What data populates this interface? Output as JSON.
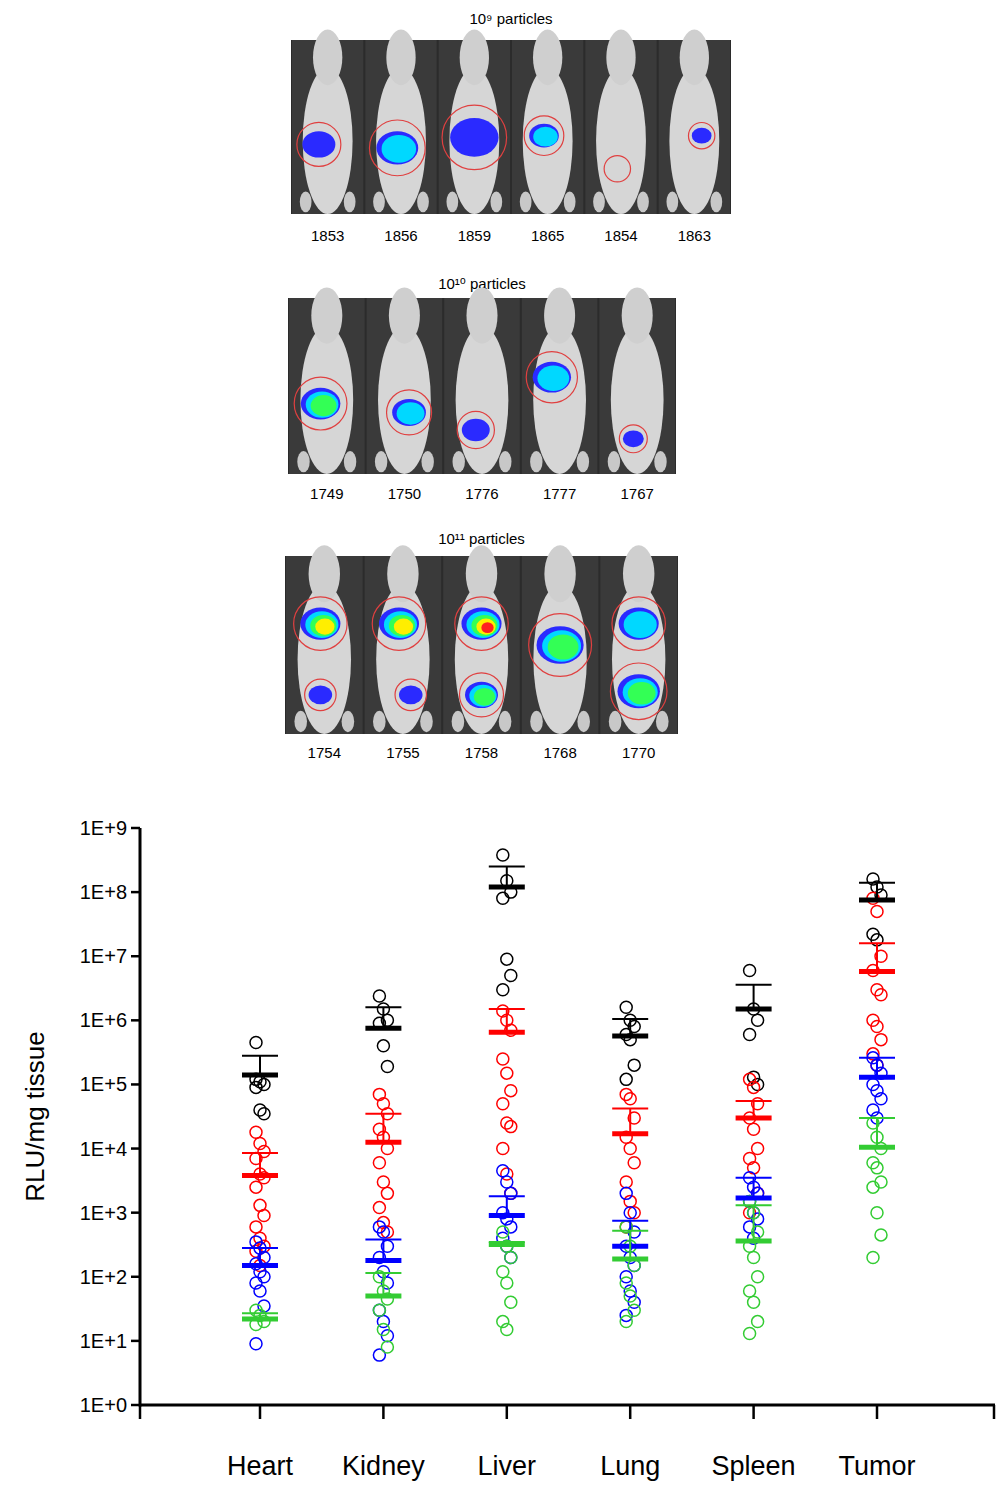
{
  "image_panels": [
    {
      "title": "10⁹ particles",
      "labels": [
        "1853",
        "1856",
        "1859",
        "1865",
        "1854",
        "1863"
      ]
    },
    {
      "title": "10¹⁰ particles",
      "labels": [
        "1749",
        "1750",
        "1776",
        "1777",
        "1767"
      ]
    },
    {
      "title": "10¹¹ particles",
      "labels": [
        "1754",
        "1755",
        "1758",
        "1768",
        "1770"
      ]
    }
  ],
  "chart_data": {
    "type": "dot",
    "y_label": "RLU/mg tissue",
    "categories": [
      "Heart",
      "Kidney",
      "Liver",
      "Lung",
      "Spleen",
      "Tumor"
    ],
    "log": "y",
    "grid": false,
    "marker": "open_circle",
    "ylim": [
      1,
      1000000000.0
    ],
    "yticks": [
      {
        "value": 1,
        "label": "1E+0"
      },
      {
        "value": 10,
        "label": "1E+1"
      },
      {
        "value": 100,
        "label": "1E+2"
      },
      {
        "value": 1000,
        "label": "1E+3"
      },
      {
        "value": 10000,
        "label": "1E+4"
      },
      {
        "value": 100000,
        "label": "1E+5"
      },
      {
        "value": 1000000,
        "label": "1E+6"
      },
      {
        "value": 10000000,
        "label": "1E+7"
      },
      {
        "value": 100000000,
        "label": "1E+8"
      },
      {
        "value": 1000000000,
        "label": "1E+9"
      }
    ],
    "series": [
      {
        "color": "#000000",
        "values": [
          [
            450000.0,
            110000.0,
            100000.0,
            90000.0,
            40000.0,
            35000.0,
            120000.0
          ],
          [
            2400000.0,
            1500000.0,
            1000000.0,
            900000.0,
            400000.0,
            190000.0
          ],
          [
            380000000.0,
            150000000.0,
            100000000.0,
            80000000.0,
            9000000.0,
            5000000.0,
            3000000.0
          ],
          [
            1600000.0,
            1000000.0,
            800000.0,
            600000.0,
            500000.0,
            200000.0,
            120000.0
          ],
          [
            6000000.0,
            1500000.0,
            1000000.0,
            600000.0,
            130000.0,
            100000.0
          ],
          [
            160000000.0,
            120000000.0,
            90000000.0,
            22000000.0,
            18000000.0
          ]
        ],
        "mean": [
          140000.0,
          750000.0,
          120000000.0,
          570000.0,
          1500000.0,
          75000000.0
        ],
        "errors": [
          140000.0,
          850000.0,
          130000000.0,
          480000.0,
          2100000.0,
          65000000.0
        ]
      },
      {
        "color": "#ff0000",
        "values": [
          [
            18000.0,
            12000.0,
            9000.0,
            7000.0,
            4000.0,
            3500.0,
            2500.0,
            1300.0,
            900,
            600,
            400,
            300,
            250,
            150
          ],
          [
            70000.0,
            50000.0,
            35000.0,
            20000.0,
            15000.0,
            10000.0,
            6000.0,
            3000.0,
            2000.0,
            1200.0,
            700,
            500
          ],
          [
            1400000.0,
            1000000.0,
            700000.0,
            250000.0,
            150000.0,
            80000.0,
            50000.0,
            25000.0,
            22000.0,
            10000.0,
            4000.0,
            2000.0
          ],
          [
            70000.0,
            60000.0,
            30000.0,
            15000.0,
            10000.0,
            6000.0,
            3000.0,
            1500.0,
            1000.0,
            600
          ],
          [
            120000.0,
            90000.0,
            50000.0,
            30000.0,
            20000.0,
            10000.0,
            7000.0,
            5000.0,
            2000.0,
            1000.0
          ],
          [
            80000000.0,
            50000000.0,
            10000000.0,
            6000000.0,
            3000000.0,
            2500000.0,
            1000000.0,
            800000.0,
            500000.0,
            300000.0,
            200000.0
          ]
        ],
        "mean": [
          3800.0,
          12500.0,
          650000.0,
          17000.0,
          30000.0,
          5800000.0
        ],
        "errors": [
          4700.0,
          22500.0,
          850000.0,
          25000.0,
          25000.0,
          10200000.0
        ]
      },
      {
        "color": "#0000ff",
        "values": [
          [
            350,
            280,
            200,
            160,
            120,
            100,
            80,
            60,
            35,
            9
          ],
          [
            600,
            500,
            300,
            200,
            120,
            80,
            30,
            20,
            12,
            6
          ],
          [
            4500.0,
            3000.0,
            2000.0,
            1000.0,
            800,
            600,
            400,
            300,
            200
          ],
          [
            2000.0,
            1000.0,
            500,
            300,
            200,
            150,
            100,
            60,
            40,
            25
          ],
          [
            3500.0,
            2500.0,
            2000.0,
            1500.0,
            1000.0,
            800,
            600,
            400
          ],
          [
            260000.0,
            200000.0,
            150000.0,
            100000.0,
            80000.0,
            60000.0,
            40000.0,
            30000.0
          ]
        ],
        "mean": [
          150,
          180,
          900,
          300,
          1700,
          130000.0
        ],
        "errors": [
          130,
          200,
          900,
          450,
          1800,
          130000.0
        ]
      },
      {
        "color": "#33cc33",
        "values": [
          [
            30,
            25,
            20,
            18
          ],
          [
            100,
            60,
            45,
            30,
            15,
            8
          ],
          [
            500,
            300,
            200,
            120,
            80,
            40,
            20,
            15
          ],
          [
            600,
            300,
            150,
            80,
            50,
            30,
            20
          ],
          [
            1500.0,
            1000.0,
            500,
            300,
            200,
            100,
            60,
            40,
            20,
            13
          ],
          [
            25000.0,
            15000.0,
            10000.0,
            6000.0,
            5000.0,
            3000.0,
            2500.0,
            1000.0,
            450,
            200
          ]
        ],
        "mean": [
          22,
          50,
          320,
          190,
          360,
          10500.0
        ],
        "errors": [
          5,
          65,
          30,
          330,
          940,
          19500.0
        ]
      }
    ]
  }
}
